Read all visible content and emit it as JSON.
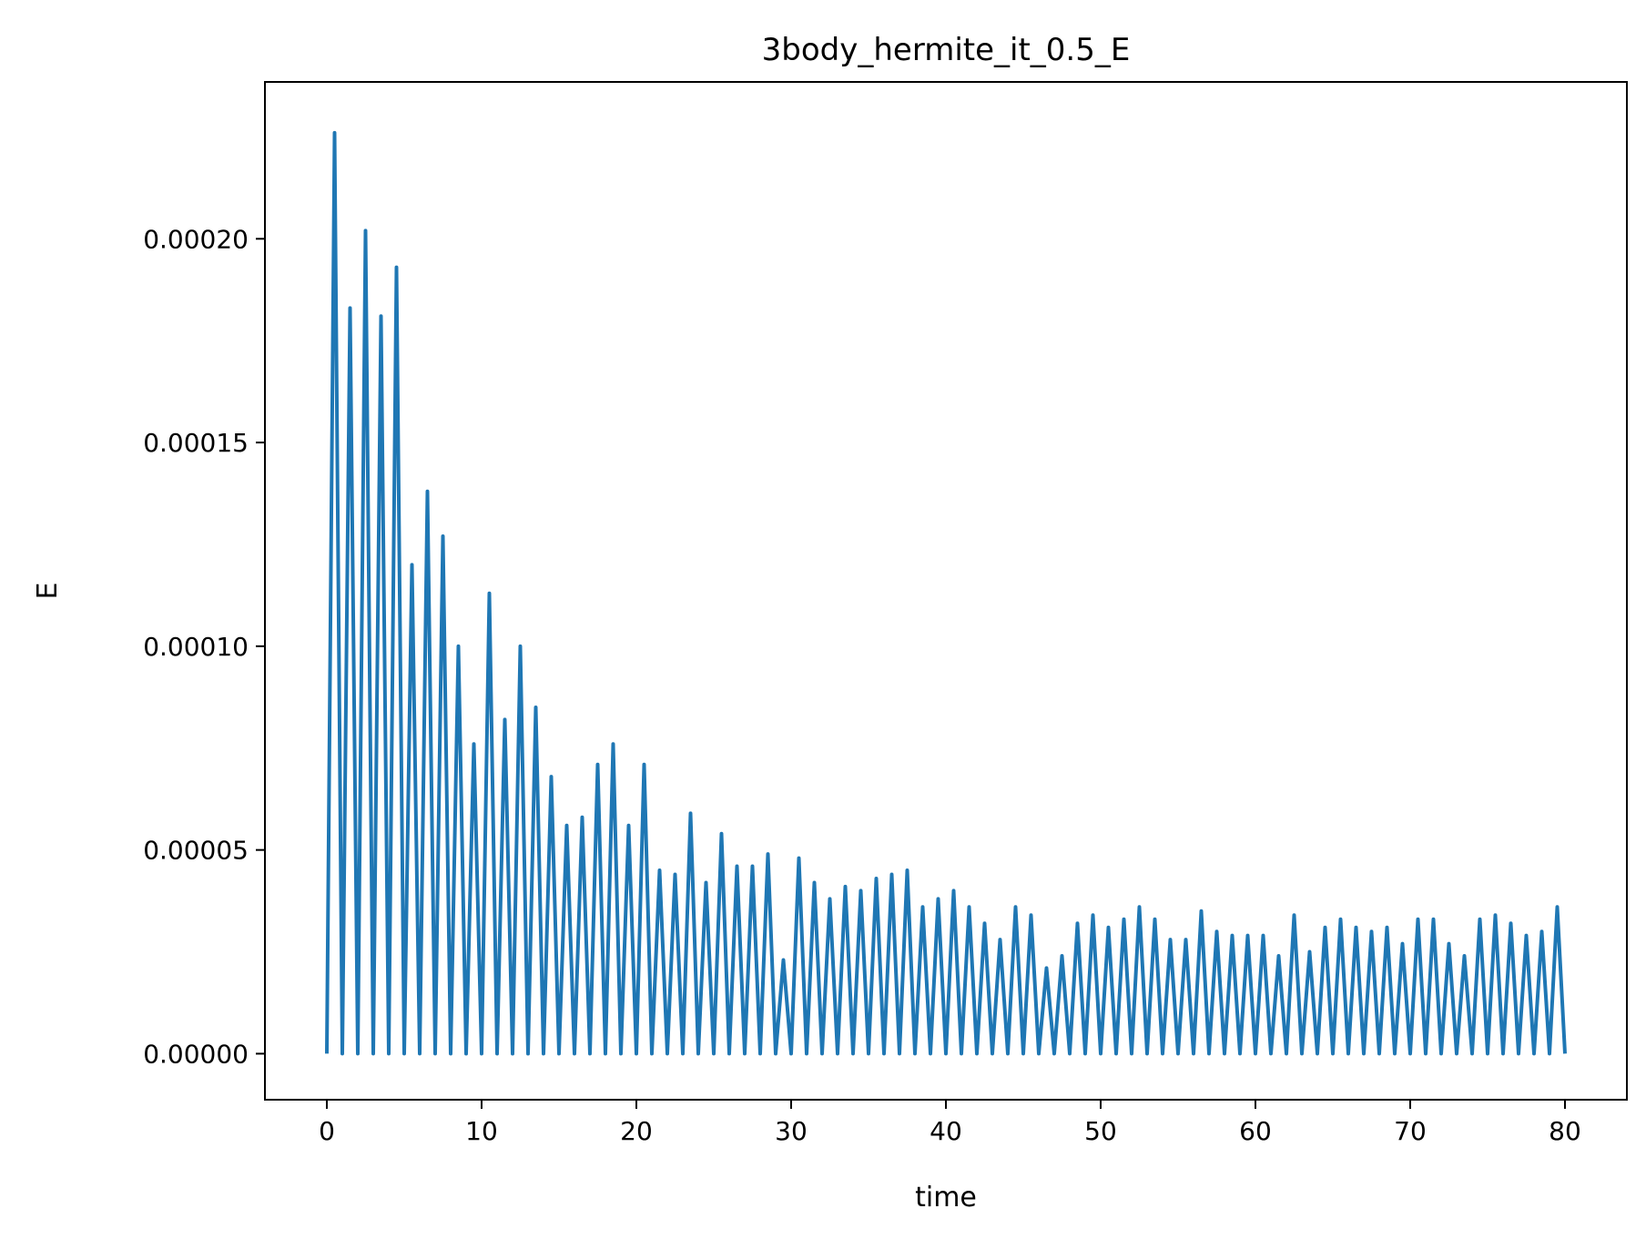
{
  "chart_data": {
    "type": "line",
    "title": "3body_hermite_it_0.5_E",
    "xlabel": "time",
    "ylabel": "E",
    "xlim": [
      -4,
      84
    ],
    "ylim": [
      -1.13e-05,
      0.0002385
    ],
    "grid": false,
    "color": "#1f77b4",
    "xticks": [
      0,
      10,
      20,
      30,
      40,
      50,
      60,
      70,
      80
    ],
    "xtick_labels": [
      "0",
      "10",
      "20",
      "30",
      "40",
      "50",
      "60",
      "70",
      "80"
    ],
    "yticks": [
      0,
      5e-05,
      0.0001,
      0.00015,
      0.0002
    ],
    "ytick_labels": [
      "0.00000",
      "0.00005",
      "0.00010",
      "0.00015",
      "0.00020"
    ],
    "series": [
      {
        "x": [
          0,
          0.5,
          1,
          1.5,
          2,
          2.5,
          3,
          3.5,
          4,
          4.5,
          5,
          5.5,
          6,
          6.5,
          7,
          7.5,
          8,
          8.5,
          9,
          9.5,
          10,
          10.5,
          11,
          11.5,
          12,
          12.5,
          13,
          13.5,
          14,
          14.5,
          15,
          15.5,
          16,
          16.5,
          17,
          17.5,
          18,
          18.5,
          19,
          19.5,
          20,
          20.5,
          21,
          21.5,
          22,
          22.5,
          23,
          23.5,
          24,
          24.5,
          25,
          25.5,
          26,
          26.5,
          27,
          27.5,
          28,
          28.5,
          29,
          29.5,
          30,
          30.5,
          31,
          31.5,
          32,
          32.5,
          33,
          33.5,
          34,
          34.5,
          35,
          35.5,
          36,
          36.5,
          37,
          37.5,
          38,
          38.5,
          39,
          39.5,
          40,
          40.5,
          41,
          41.5,
          42,
          42.5,
          43,
          43.5,
          44,
          44.5,
          45,
          45.5,
          46,
          46.5,
          47,
          47.5,
          48,
          48.5,
          49,
          49.5,
          50,
          50.5,
          51,
          51.5,
          52,
          52.5,
          53,
          53.5,
          54,
          54.5,
          55,
          55.5,
          56,
          56.5,
          57,
          57.5,
          58,
          58.5,
          59,
          59.5,
          60,
          60.5,
          61,
          61.5,
          62,
          62.5,
          63,
          63.5,
          64,
          64.5,
          65,
          65.5,
          66,
          66.5,
          67,
          67.5,
          68,
          68.5,
          69,
          69.5,
          70,
          70.5,
          71,
          71.5,
          72,
          72.5,
          73,
          73.5,
          74,
          74.5,
          75,
          75.5,
          76,
          76.5,
          77,
          77.5,
          78,
          78.5,
          79,
          79.5,
          80
        ],
        "y": [
          0,
          0.000226,
          0,
          0.000183,
          0,
          0.000202,
          0,
          0.000181,
          0,
          0.000193,
          0,
          0.00012,
          0,
          0.000138,
          0,
          0.000127,
          0,
          0.0001,
          0,
          7.6e-05,
          0,
          0.000113,
          0,
          8.2e-05,
          0,
          0.0001,
          0,
          8.5e-05,
          0,
          6.8e-05,
          0,
          5.6e-05,
          0,
          5.8e-05,
          0,
          7.1e-05,
          0,
          7.6e-05,
          0,
          5.6e-05,
          0,
          7.1e-05,
          0,
          4.5e-05,
          0,
          4.4e-05,
          0,
          5.9e-05,
          0,
          4.2e-05,
          0,
          5.4e-05,
          0,
          4.6e-05,
          0,
          4.6e-05,
          0,
          4.9e-05,
          0,
          2.3e-05,
          0,
          4.8e-05,
          0,
          4.2e-05,
          0,
          3.8e-05,
          0,
          4.1e-05,
          0,
          4e-05,
          0,
          4.3e-05,
          0,
          4.4e-05,
          0,
          4.5e-05,
          0,
          3.6e-05,
          0,
          3.8e-05,
          0,
          4e-05,
          0,
          3.6e-05,
          0,
          3.2e-05,
          0,
          2.8e-05,
          0,
          3.6e-05,
          0,
          3.4e-05,
          0,
          2.1e-05,
          0,
          2.4e-05,
          0,
          3.2e-05,
          0,
          3.4e-05,
          0,
          3.1e-05,
          0,
          3.3e-05,
          0,
          3.6e-05,
          0,
          3.3e-05,
          0,
          2.8e-05,
          0,
          2.8e-05,
          0,
          3.5e-05,
          0,
          3e-05,
          0,
          2.9e-05,
          0,
          2.9e-05,
          0,
          2.9e-05,
          0,
          2.4e-05,
          0,
          3.4e-05,
          0,
          2.5e-05,
          0,
          3.1e-05,
          0,
          3.3e-05,
          0,
          3.1e-05,
          0,
          3e-05,
          0,
          3.1e-05,
          0,
          2.7e-05,
          0,
          3.3e-05,
          0,
          3.3e-05,
          0,
          2.7e-05,
          0,
          2.4e-05,
          0,
          3.3e-05,
          0,
          3.4e-05,
          0,
          3.2e-05,
          0,
          2.9e-05,
          0,
          3e-05,
          0,
          3.6e-05,
          0
        ]
      }
    ]
  }
}
